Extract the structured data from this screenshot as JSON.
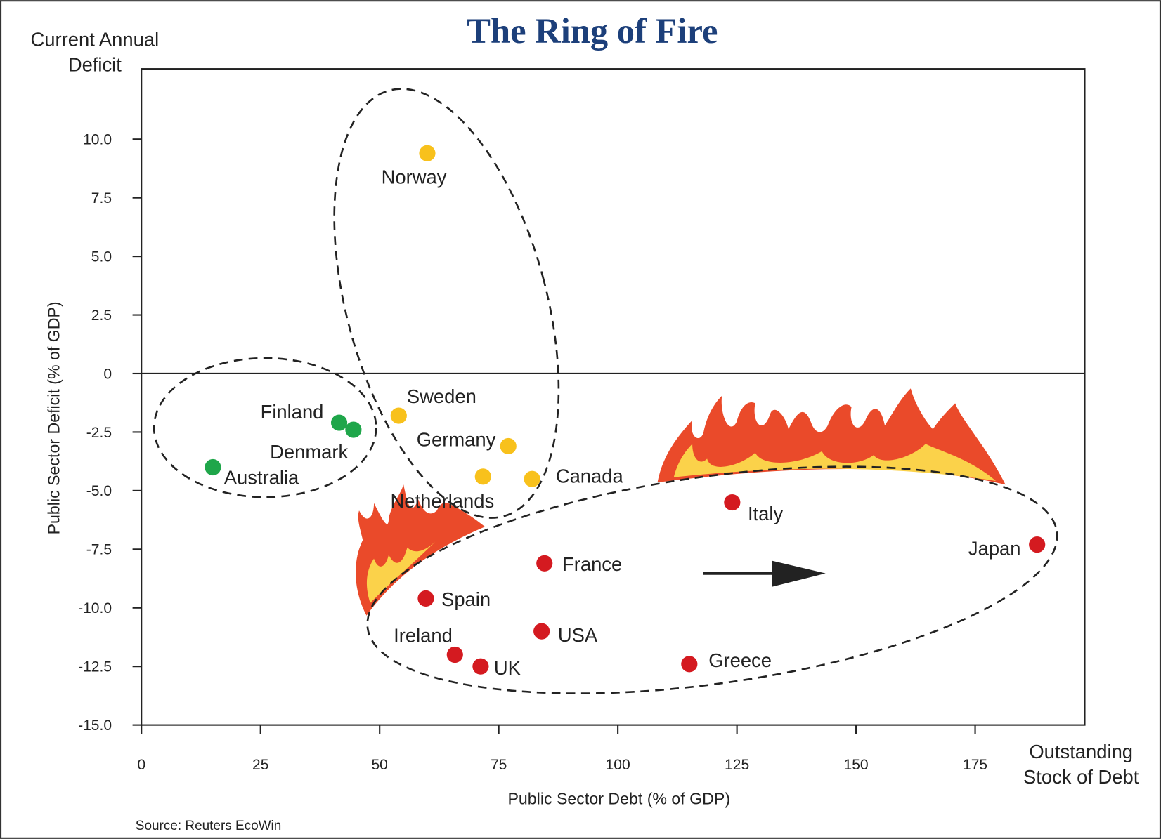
{
  "chart_data": {
    "type": "scatter",
    "title": "The Ring of Fire",
    "y_corner_label": [
      "Current Annual",
      "Deficit"
    ],
    "x_corner_label": [
      "Outstanding",
      "Stock of Debt"
    ],
    "ylabel": "Public Sector Deficit (% of GDP)",
    "xlabel": "Public Sector Debt (% of GDP)",
    "source": "Source: Reuters EcoWin",
    "xlim": [
      0,
      198
    ],
    "ylim": [
      -15,
      13
    ],
    "xticks": [
      0,
      25,
      50,
      75,
      100,
      125,
      150,
      175
    ],
    "yticks": [
      {
        "value": 10,
        "label": "10.0"
      },
      7.5,
      {
        "value": 5,
        "label": "5.0"
      },
      2.5,
      0,
      -2.5,
      {
        "value": -5,
        "label": "-5.0"
      },
      -7.5,
      {
        "value": -10,
        "label": "-10.0"
      },
      -12.5,
      {
        "value": -15,
        "label": "-15.0"
      }
    ],
    "hline": 0,
    "series": [
      {
        "color": "#1fa64a",
        "labels": [
          "Finland",
          "Denmark",
          "Australia"
        ],
        "x": [
          41.5,
          44.5,
          15
        ],
        "values": [
          -2.1,
          -2.4,
          -4.0
        ]
      },
      {
        "color": "#f8c11c",
        "labels": [
          "Norway",
          "Sweden",
          "Germany",
          "Netherlands",
          "Canada"
        ],
        "x": [
          60,
          54,
          77,
          71.7,
          82
        ],
        "values": [
          9.4,
          -1.8,
          -3.1,
          -4.4,
          -4.5
        ]
      },
      {
        "color": "#d41a20",
        "labels": [
          "Italy",
          "Japan",
          "France",
          "Spain",
          "USA",
          "Ireland",
          "UK",
          "Greece"
        ],
        "x": [
          124,
          188,
          84.6,
          59.7,
          84,
          65.8,
          71.2,
          115
        ],
        "values": [
          -5.5,
          -7.3,
          -8.1,
          -9.6,
          -11.0,
          -12.0,
          -12.5,
          -12.4
        ]
      }
    ]
  }
}
